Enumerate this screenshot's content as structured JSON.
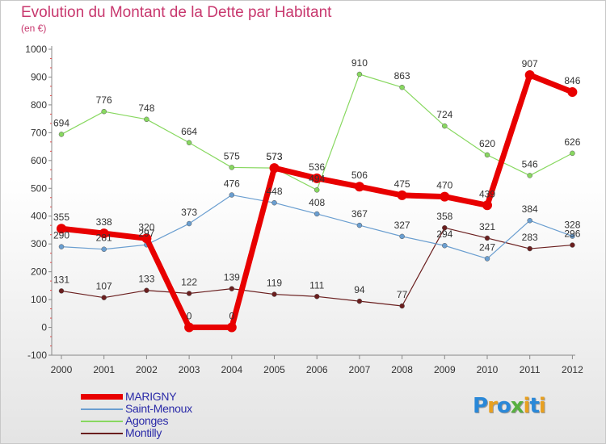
{
  "title": "Evolution du Montant de la Dette par Habitant",
  "subtitle": "(en €)",
  "logo": "Proxiti",
  "logo_colors": [
    "#2a88d8",
    "#e8a020",
    "#2a88d8",
    "#58b040",
    "#e8a020",
    "#2a88d8",
    "#e8a020"
  ],
  "chart_data": {
    "type": "line",
    "title": "Evolution du Montant de la Dette par Habitant",
    "ylabel": "(en €)",
    "xlabel": "",
    "x": [
      "2000",
      "2001",
      "2002",
      "2003",
      "2004",
      "2005",
      "2006",
      "2007",
      "2008",
      "2009",
      "2010",
      "2011",
      "2012"
    ],
    "ylim": [
      -100,
      1000
    ],
    "yticks": [
      -100,
      0,
      100,
      200,
      300,
      400,
      500,
      600,
      700,
      800,
      900,
      1000
    ],
    "grid": false,
    "legend_position": "bottom-left",
    "series": [
      {
        "name": "Montilly",
        "color": "#6a1e1e",
        "values": [
          131,
          107,
          133,
          122,
          139,
          119,
          111,
          94,
          77,
          358,
          321,
          283,
          296
        ],
        "labels": [
          "131",
          "107",
          "133",
          "122",
          "139",
          "119",
          "111",
          "94",
          "77",
          "358",
          "321",
          "283",
          "296"
        ]
      },
      {
        "name": "Saint-Menoux",
        "color": "#6a9ed0",
        "values": [
          290,
          281,
          297,
          373,
          476,
          448,
          408,
          367,
          327,
          294,
          247,
          384,
          328
        ],
        "labels": [
          "290",
          "281",
          "297",
          "373",
          "476",
          "448",
          "408",
          "367",
          "327",
          "294",
          "247",
          "384",
          "328"
        ]
      },
      {
        "name": "Agonges",
        "color": "#88d860",
        "values": [
          694,
          776,
          748,
          664,
          575,
          573,
          494,
          910,
          863,
          724,
          620,
          546,
          626
        ],
        "labels": [
          "694",
          "776",
          "748",
          "664",
          "575",
          "573",
          "494",
          "910",
          "863",
          "724",
          "620",
          "546",
          "626"
        ]
      },
      {
        "name": "MARIGNY",
        "color": "#e80000",
        "values": [
          355,
          338,
          320,
          0,
          0,
          573,
          536,
          506,
          475,
          470,
          439,
          907,
          846
        ],
        "labels": [
          "355",
          "338",
          "320",
          "0",
          "0",
          "573",
          "536",
          "506",
          "475",
          "470",
          "439",
          "907",
          "846"
        ]
      }
    ]
  },
  "legend": [
    {
      "label": "MARIGNY",
      "color": "#e80000"
    },
    {
      "label": "Saint-Menoux",
      "color": "#6a9ed0"
    },
    {
      "label": "Agonges",
      "color": "#88d860"
    },
    {
      "label": "Montilly",
      "color": "#6a1e1e"
    }
  ]
}
